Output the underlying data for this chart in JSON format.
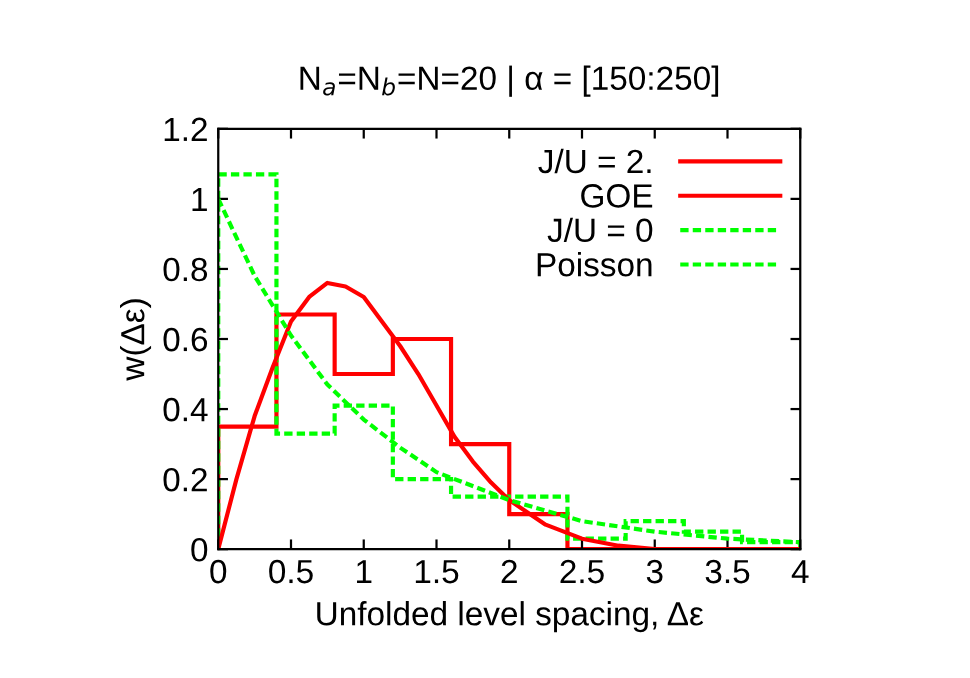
{
  "chart_data": {
    "type": "histogram",
    "title": "N$_{a}$=N$_{b}$=N=20 | α = [150:250]",
    "xlabel": "Unfolded level spacing, Δε",
    "ylabel": "w(Δε)",
    "bins": [
      0,
      0.4,
      0.8,
      1.2,
      1.6,
      2,
      2.4,
      2.8,
      3.2,
      3.6,
      4
    ],
    "series": [
      {
        "name": "J/U = 2.",
        "color": "#ff0000",
        "line_style": "solid",
        "values": [
          0.35,
          0.67,
          0.5,
          0.6,
          0.3,
          0.1,
          0,
          0,
          0,
          0
        ]
      },
      {
        "name": "GOE",
        "type": "line",
        "color": "#ff0000",
        "line_style": "solid",
        "x": [
          0,
          0.125,
          0.25,
          0.375,
          0.5,
          0.625,
          0.75,
          0.875,
          1,
          1.125,
          1.25,
          1.375,
          1.5,
          1.625,
          1.75,
          1.875,
          2,
          2.25,
          2.5,
          2.75,
          3,
          3.5,
          4
        ],
        "values": [
          0,
          0.2,
          0.38,
          0.52,
          0.65,
          0.72,
          0.76,
          0.75,
          0.72,
          0.65,
          0.58,
          0.5,
          0.41,
          0.32,
          0.25,
          0.19,
          0.14,
          0.07,
          0.03,
          0.01,
          0,
          0,
          0
        ]
      },
      {
        "name": "J/U = 0",
        "color": "#00ff00",
        "line_style": "dashed",
        "values": [
          1.07,
          0.33,
          0.41,
          0.2,
          0.15,
          0.15,
          0.03,
          0.08,
          0.05,
          0.02
        ]
      },
      {
        "name": "Poisson",
        "type": "line",
        "color": "#00ff00",
        "line_style": "dashed",
        "x": [
          0,
          0.25,
          0.5,
          0.75,
          1,
          1.25,
          1.5,
          2,
          2.5,
          3,
          3.5,
          4
        ],
        "values": [
          1,
          0.78,
          0.61,
          0.47,
          0.37,
          0.29,
          0.22,
          0.14,
          0.08,
          0.05,
          0.03,
          0.02
        ]
      }
    ],
    "xlim": [
      0,
      4
    ],
    "ylim": [
      0,
      1.2
    ],
    "xticks": [
      0,
      0.5,
      1,
      1.5,
      2,
      2.5,
      3,
      3.5,
      4
    ],
    "yticks": [
      0,
      0.2,
      0.4,
      0.6,
      0.8,
      1,
      1.2
    ],
    "legend": "top right",
    "grid": false
  }
}
